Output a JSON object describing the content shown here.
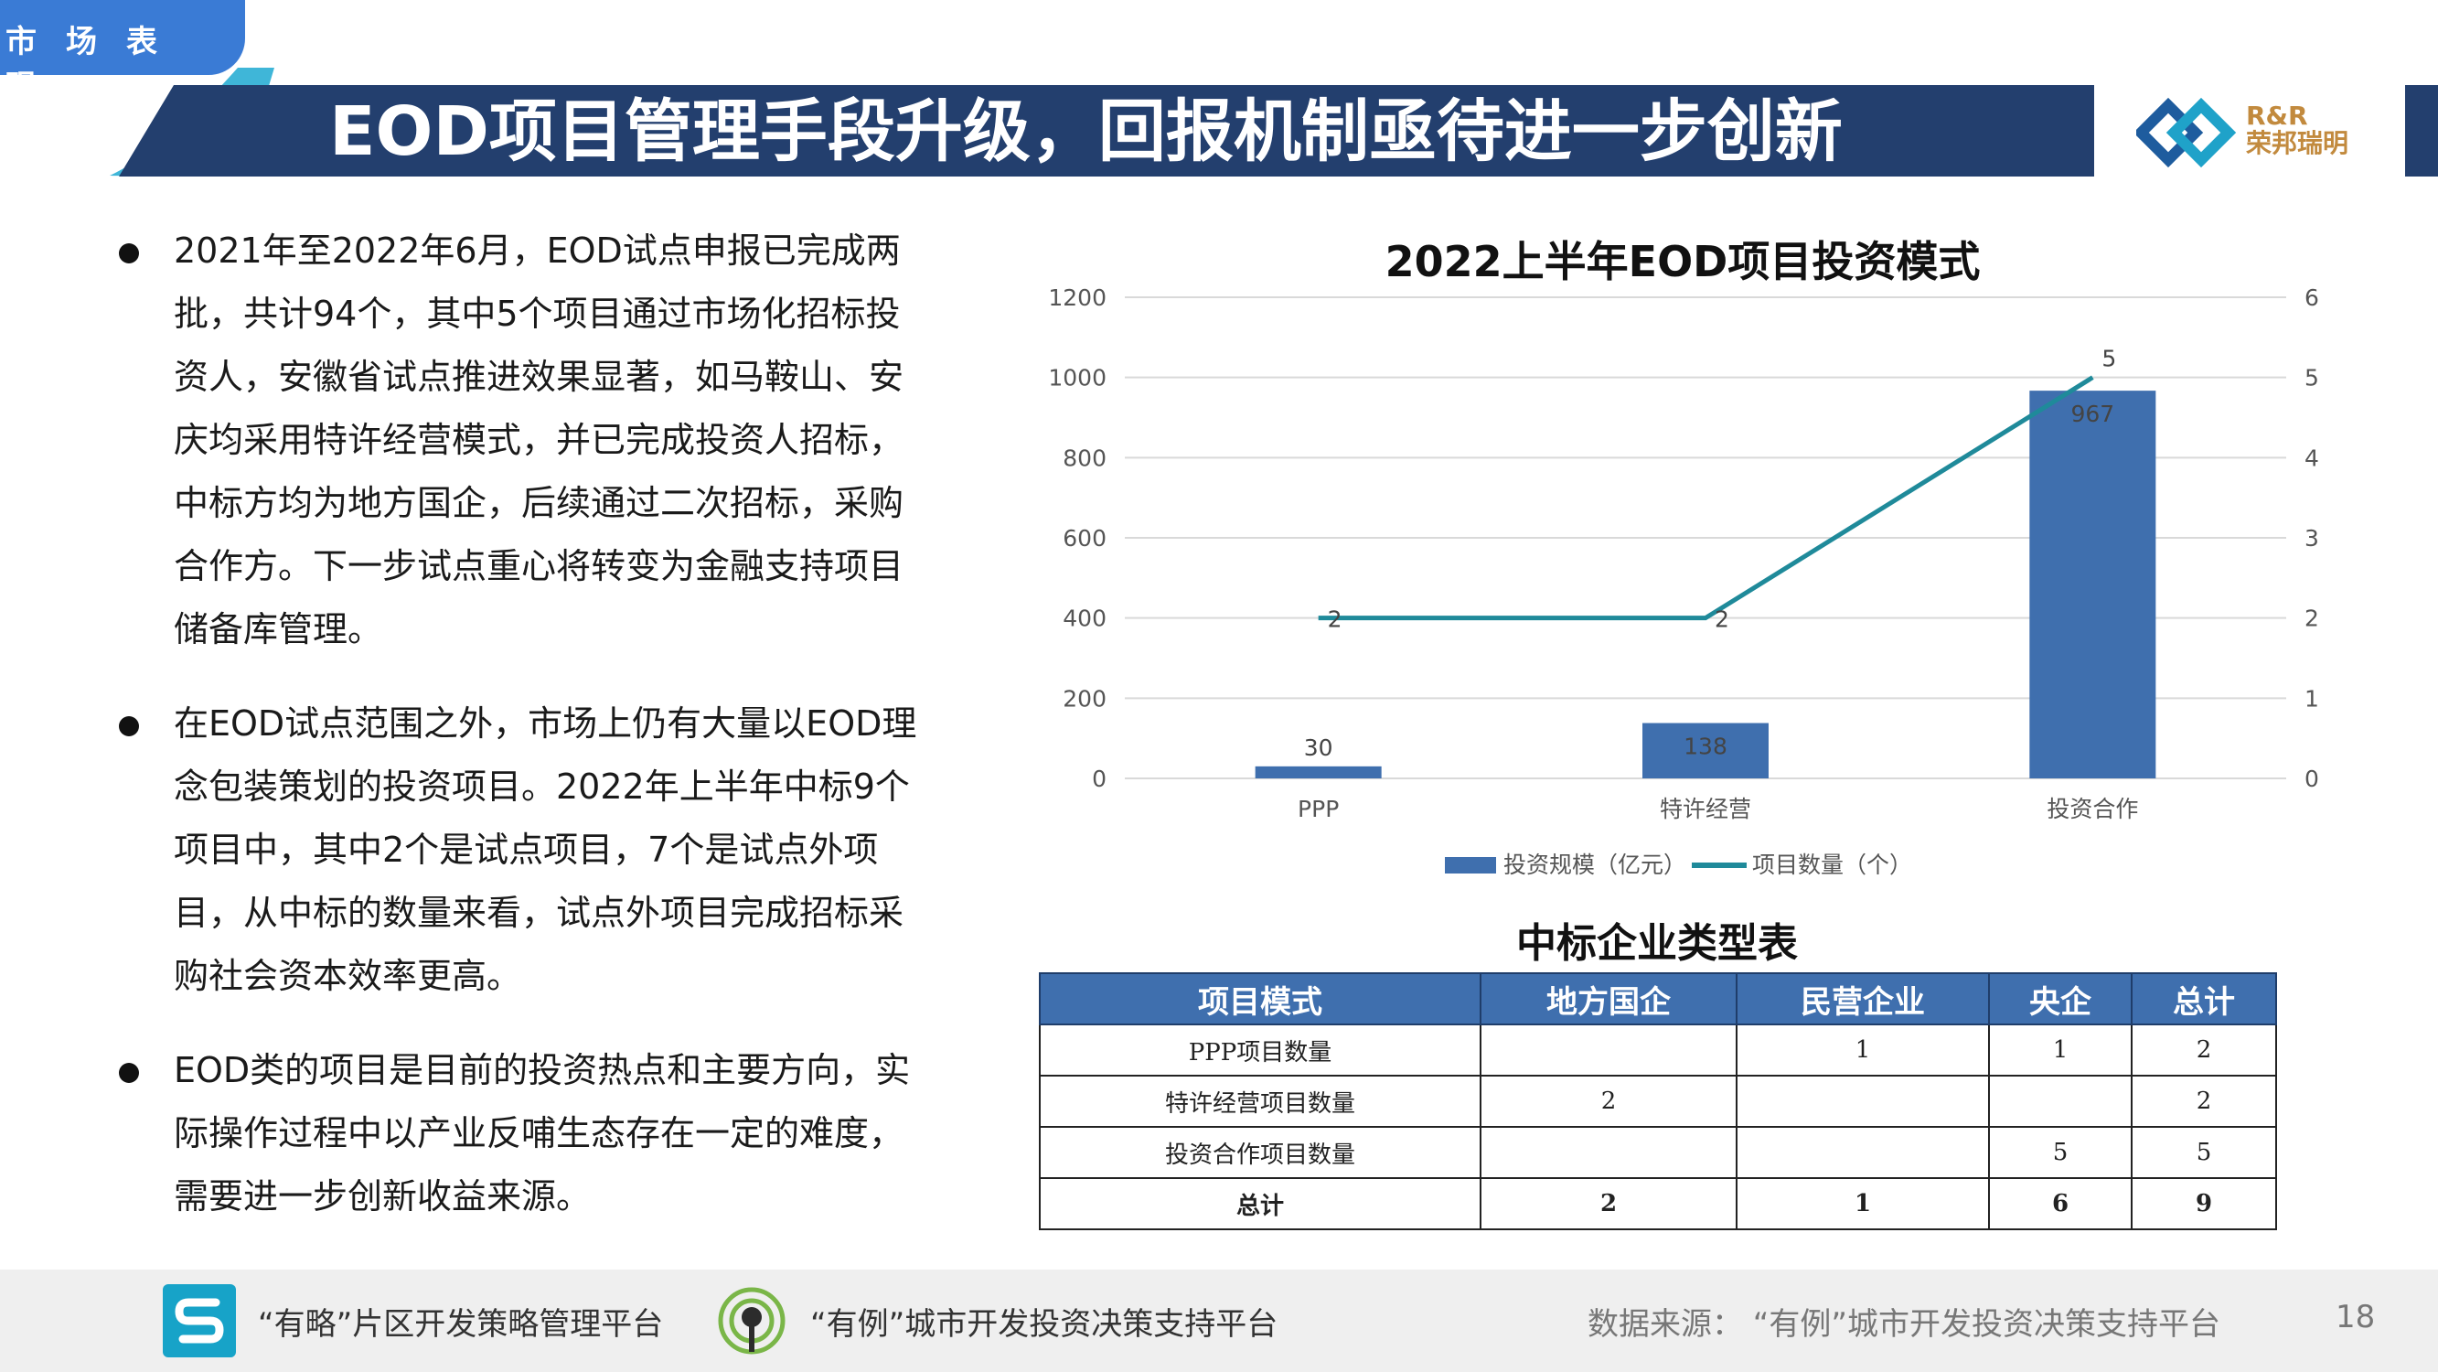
{
  "header": {
    "section_tab": "市场表现",
    "title": "EOD项目管理手段升级，回报机制亟待进一步创新",
    "logo_text_line1": "R&R",
    "logo_text_line2": "荣邦瑞明"
  },
  "bullets": [
    "2021年至2022年6月，EOD试点申报已完成两批，共计94个，其中5个项目通过市场化招标投资人，安徽省试点推进效果显著，如马鞍山、安庆均采用特许经营模式，并已完成投资人招标，中标方均为地方国企，后续通过二次招标，采购合作方。下一步试点重心将转变为金融支持项目储备库管理。",
    "在EOD试点范围之外，市场上仍有大量以EOD理念包装策划的投资项目。2022年上半年中标9个项目中，其中2个是试点项目，7个是试点外项目，从中标的数量来看，试点外项目完成招标采购社会资本效率更高。",
    "EOD类的项目是目前的投资热点和主要方向，实际操作过程中以产业反哺生态存在一定的难度，需要进一步创新收益来源。"
  ],
  "chart_data": {
    "type": "bar",
    "title": "2022上半年EOD项目投资模式",
    "categories": [
      "PPP",
      "特许经营",
      "投资合作"
    ],
    "series": [
      {
        "name": "投资规模（亿元）",
        "type": "bar",
        "axis": "left",
        "values": [
          30,
          138,
          967
        ],
        "color": "#3f6fae"
      },
      {
        "name": "项目数量（个）",
        "type": "line",
        "axis": "right",
        "values": [
          2,
          2,
          5
        ],
        "color": "#1f8a9a"
      }
    ],
    "ylim": [
      0,
      1200
    ],
    "y_ticks": [
      0,
      200,
      400,
      600,
      800,
      1000,
      1200
    ],
    "y2lim": [
      0,
      6
    ],
    "y2_ticks": [
      0,
      1,
      2,
      3,
      4,
      5,
      6
    ],
    "grid": true,
    "legend": "bottom"
  },
  "table": {
    "title": "中标企业类型表",
    "headers": [
      "项目模式",
      "地方国企",
      "民营企业",
      "央企",
      "总计"
    ],
    "rows": [
      [
        "PPP项目数量",
        "",
        "1",
        "1",
        "2"
      ],
      [
        "特许经营项目数量",
        "2",
        "",
        "",
        "2"
      ],
      [
        "投资合作项目数量",
        "",
        "",
        "5",
        "5"
      ],
      [
        "总计",
        "2",
        "1",
        "6",
        "9"
      ]
    ]
  },
  "footer": {
    "platform1": "“有略”片区开发策略管理平台",
    "platform2": "“有例”城市开发投资决策支持平台",
    "source": "数据来源：  “有例”城市开发投资决策支持平台",
    "page": "18"
  },
  "colors": {
    "title_bar": "#233f6e",
    "tab": "#3a7bd5",
    "bar": "#3f6fae",
    "line": "#1f8a9a",
    "logo_gold": "#c28a3e"
  }
}
